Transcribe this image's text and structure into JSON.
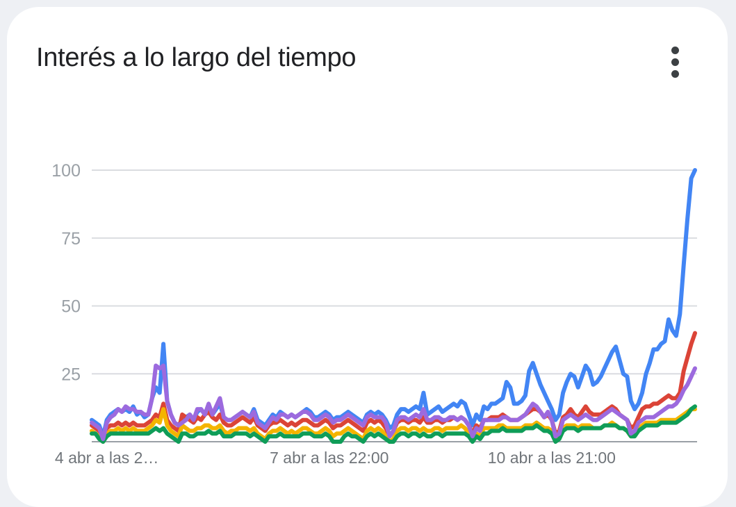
{
  "card": {
    "title": "Interés a lo largo del tiempo",
    "menu_icon": "more-vert-icon"
  },
  "chart_data": {
    "type": "line",
    "title": "Interés a lo largo del tiempo",
    "xlabel": "",
    "ylabel": "",
    "ylim": [
      0,
      100
    ],
    "yticks": [
      "100",
      "75",
      "50",
      "25"
    ],
    "xtick_labels": [
      {
        "label": "4 abr a las 2…",
        "index": 4
      },
      {
        "label": "7 abr a las 22:00",
        "index": 63
      },
      {
        "label": "10 abr a las 21:00",
        "index": 122
      }
    ],
    "grid": true,
    "legend": "none",
    "series": [
      {
        "color": "#4285f4",
        "values": [
          8,
          7,
          6,
          2,
          8,
          10,
          11,
          12,
          11,
          12,
          11,
          13,
          10,
          11,
          9,
          10,
          16,
          20,
          18,
          36,
          15,
          10,
          7,
          6,
          8,
          9,
          10,
          8,
          11,
          12,
          10,
          13,
          10,
          12,
          14,
          9,
          8,
          8,
          9,
          10,
          11,
          10,
          9,
          12,
          8,
          7,
          6,
          8,
          10,
          9,
          11,
          10,
          9,
          10,
          9,
          10,
          11,
          12,
          11,
          9,
          9,
          10,
          11,
          10,
          8,
          9,
          9,
          10,
          11,
          10,
          9,
          8,
          7,
          10,
          11,
          10,
          11,
          10,
          8,
          5,
          6,
          10,
          12,
          12,
          11,
          12,
          13,
          12,
          18,
          10,
          11,
          12,
          13,
          11,
          12,
          13,
          14,
          13,
          15,
          14,
          10,
          6,
          10,
          8,
          13,
          12,
          14,
          14,
          15,
          16,
          22,
          20,
          14,
          14,
          15,
          17,
          26,
          29,
          25,
          21,
          18,
          15,
          12,
          8,
          10,
          18,
          22,
          25,
          24,
          20,
          24,
          28,
          26,
          21,
          22,
          24,
          27,
          30,
          33,
          35,
          30,
          25,
          24,
          15,
          12,
          14,
          18,
          25,
          29,
          34,
          34,
          36,
          37,
          45,
          41,
          39,
          47,
          65,
          82,
          97,
          100
        ]
      },
      {
        "color": "#db4437",
        "values": [
          6,
          5,
          4,
          1,
          5,
          6,
          6,
          7,
          6,
          7,
          6,
          7,
          6,
          6,
          6,
          7,
          8,
          10,
          9,
          14,
          8,
          6,
          5,
          4,
          10,
          9,
          8,
          7,
          9,
          8,
          10,
          11,
          9,
          8,
          10,
          7,
          6,
          6,
          7,
          8,
          9,
          8,
          7,
          9,
          6,
          5,
          4,
          6,
          7,
          7,
          8,
          7,
          6,
          7,
          6,
          7,
          8,
          8,
          7,
          6,
          6,
          7,
          8,
          7,
          5,
          6,
          6,
          7,
          8,
          7,
          6,
          5,
          4,
          7,
          8,
          7,
          8,
          7,
          5,
          2,
          4,
          7,
          8,
          8,
          7,
          8,
          8,
          7,
          9,
          7,
          7,
          8,
          8,
          7,
          8,
          8,
          9,
          8,
          9,
          8,
          6,
          3,
          6,
          5,
          8,
          8,
          9,
          9,
          9,
          10,
          9,
          8,
          8,
          8,
          9,
          10,
          11,
          12,
          12,
          11,
          9,
          10,
          8,
          3,
          4,
          9,
          10,
          12,
          10,
          9,
          11,
          13,
          11,
          10,
          10,
          10,
          11,
          12,
          13,
          12,
          10,
          9,
          8,
          5,
          6,
          9,
          12,
          13,
          13,
          14,
          14,
          15,
          16,
          17,
          16,
          16,
          18,
          26,
          31,
          36,
          40
        ]
      },
      {
        "color": "#f4b400",
        "values": [
          4,
          3,
          2,
          0,
          3,
          4,
          4,
          5,
          4,
          5,
          4,
          5,
          4,
          4,
          4,
          5,
          6,
          8,
          7,
          12,
          6,
          4,
          3,
          2,
          6,
          5,
          4,
          4,
          5,
          5,
          6,
          6,
          5,
          5,
          6,
          4,
          3,
          4,
          4,
          5,
          5,
          5,
          4,
          5,
          3,
          2,
          1,
          3,
          4,
          4,
          5,
          4,
          3,
          4,
          3,
          4,
          5,
          5,
          4,
          3,
          3,
          4,
          5,
          4,
          2,
          3,
          3,
          4,
          5,
          4,
          3,
          2,
          1,
          4,
          5,
          4,
          5,
          4,
          2,
          0,
          1,
          4,
          5,
          5,
          4,
          5,
          5,
          4,
          5,
          4,
          4,
          5,
          5,
          4,
          5,
          5,
          5,
          5,
          6,
          5,
          3,
          1,
          3,
          2,
          5,
          5,
          5,
          5,
          6,
          6,
          5,
          5,
          5,
          5,
          5,
          6,
          6,
          6,
          7,
          6,
          5,
          5,
          4,
          1,
          2,
          5,
          6,
          6,
          6,
          5,
          6,
          6,
          6,
          5,
          5,
          5,
          6,
          6,
          7,
          6,
          5,
          5,
          4,
          2,
          3,
          5,
          6,
          7,
          7,
          7,
          7,
          8,
          8,
          8,
          8,
          8,
          9,
          10,
          11,
          12,
          12
        ]
      },
      {
        "color": "#0f9d58",
        "values": [
          3,
          3,
          1,
          0,
          2,
          3,
          3,
          3,
          3,
          3,
          3,
          3,
          3,
          3,
          3,
          3,
          4,
          5,
          4,
          5,
          3,
          2,
          1,
          0,
          3,
          3,
          2,
          2,
          3,
          3,
          3,
          4,
          3,
          3,
          4,
          2,
          2,
          2,
          3,
          3,
          3,
          3,
          2,
          3,
          2,
          1,
          0,
          2,
          2,
          2,
          3,
          2,
          2,
          2,
          2,
          2,
          3,
          3,
          3,
          2,
          2,
          2,
          3,
          2,
          0,
          0,
          0,
          2,
          3,
          2,
          2,
          1,
          0,
          2,
          3,
          2,
          3,
          2,
          1,
          0,
          0,
          2,
          3,
          3,
          2,
          3,
          3,
          2,
          3,
          2,
          2,
          3,
          3,
          2,
          3,
          3,
          3,
          3,
          3,
          3,
          2,
          0,
          2,
          1,
          3,
          3,
          4,
          4,
          4,
          5,
          4,
          4,
          4,
          4,
          4,
          5,
          5,
          5,
          6,
          5,
          4,
          4,
          3,
          0,
          1,
          4,
          5,
          5,
          5,
          4,
          5,
          5,
          5,
          5,
          5,
          5,
          6,
          6,
          6,
          6,
          5,
          5,
          4,
          2,
          2,
          4,
          5,
          6,
          6,
          6,
          6,
          7,
          7,
          7,
          7,
          7,
          8,
          9,
          10,
          12,
          13
        ]
      },
      {
        "color": "#9c6ade",
        "values": [
          7,
          6,
          5,
          1,
          7,
          9,
          10,
          12,
          11,
          13,
          12,
          12,
          11,
          11,
          10,
          10,
          16,
          28,
          27,
          28,
          15,
          10,
          7,
          6,
          7,
          8,
          10,
          8,
          12,
          12,
          10,
          14,
          10,
          13,
          16,
          9,
          8,
          8,
          9,
          10,
          11,
          10,
          9,
          11,
          7,
          6,
          5,
          7,
          9,
          8,
          10,
          10,
          9,
          10,
          9,
          10,
          11,
          11,
          10,
          8,
          8,
          9,
          10,
          9,
          7,
          8,
          8,
          9,
          10,
          9,
          8,
          7,
          6,
          9,
          10,
          9,
          9,
          9,
          7,
          2,
          4,
          8,
          9,
          9,
          8,
          9,
          10,
          9,
          12,
          8,
          8,
          9,
          9,
          8,
          8,
          9,
          9,
          8,
          9,
          8,
          6,
          2,
          5,
          4,
          8,
          8,
          8,
          8,
          8,
          9,
          9,
          8,
          8,
          8,
          9,
          10,
          12,
          14,
          13,
          11,
          9,
          11,
          8,
          2,
          3,
          8,
          9,
          10,
          9,
          8,
          9,
          10,
          9,
          8,
          8,
          9,
          10,
          11,
          12,
          11,
          10,
          9,
          8,
          3,
          4,
          7,
          8,
          9,
          9,
          9,
          10,
          11,
          12,
          13,
          13,
          14,
          16,
          19,
          21,
          24,
          27
        ]
      }
    ]
  }
}
